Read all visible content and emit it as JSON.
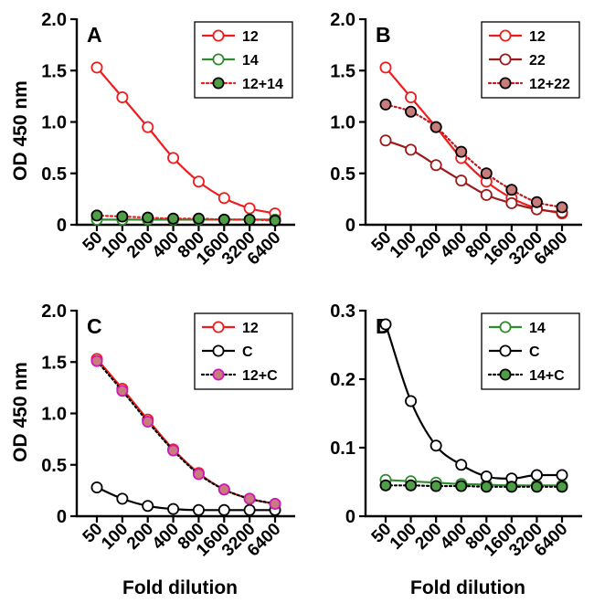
{
  "figure": {
    "y_axis_label": "OD 450 nm",
    "x_axis_label": "Fold dilution"
  },
  "chart_data": [
    {
      "panel": "A",
      "type": "line",
      "x": [
        50,
        100,
        200,
        400,
        800,
        1600,
        3200,
        6400
      ],
      "x_ticks": [
        "50",
        "100",
        "200",
        "400",
        "800",
        "1600",
        "3200",
        "6400"
      ],
      "x_scale": "log",
      "ylim": [
        0,
        2.0
      ],
      "y_ticks": [
        "0",
        "0.5",
        "1.0",
        "1.5",
        "2.0"
      ],
      "ylabel": "OD 450 nm",
      "xlabel": "",
      "legend_position": "top-right",
      "series": [
        {
          "name": "12",
          "color": "#ee1c1c",
          "values": [
            1.53,
            1.24,
            0.95,
            0.65,
            0.42,
            0.26,
            0.16,
            0.11
          ],
          "marker": "open-circle",
          "line": "solid"
        },
        {
          "name": "14",
          "color": "#2e8b2e",
          "values": [
            0.05,
            0.05,
            0.05,
            0.05,
            0.05,
            0.05,
            0.05,
            0.05
          ],
          "marker": "open-circle",
          "line": "solid"
        },
        {
          "name": "12+14",
          "color": "#ee1c1c",
          "marker_fill": "#4d9e44",
          "values": [
            0.09,
            0.08,
            0.07,
            0.06,
            0.06,
            0.05,
            0.05,
            0.04
          ],
          "marker": "filled-circle",
          "line": "dotted"
        }
      ]
    },
    {
      "panel": "B",
      "type": "line",
      "x": [
        50,
        100,
        200,
        400,
        800,
        1600,
        3200,
        6400
      ],
      "x_ticks": [
        "50",
        "100",
        "200",
        "400",
        "800",
        "1600",
        "3200",
        "6400"
      ],
      "x_scale": "log",
      "ylim": [
        0,
        2.0
      ],
      "y_ticks": [
        "0",
        "0.5",
        "1.0",
        "1.5",
        "2.0"
      ],
      "ylabel": "",
      "xlabel": "",
      "legend_position": "top-right",
      "series": [
        {
          "name": "12",
          "color": "#ee1c1c",
          "values": [
            1.53,
            1.24,
            0.95,
            0.65,
            0.42,
            0.26,
            0.16,
            0.11
          ],
          "marker": "open-circle",
          "line": "solid"
        },
        {
          "name": "22",
          "color": "#9b1a1a",
          "values": [
            0.82,
            0.73,
            0.58,
            0.43,
            0.29,
            0.21,
            0.15,
            0.12
          ],
          "marker": "open-circle",
          "line": "solid"
        },
        {
          "name": "12+22",
          "color": "#c2181e",
          "marker_fill": "#c97c7c",
          "values": [
            1.17,
            1.1,
            0.95,
            0.71,
            0.5,
            0.34,
            0.22,
            0.17
          ],
          "marker": "filled-circle",
          "line": "dotted"
        }
      ]
    },
    {
      "panel": "C",
      "type": "line",
      "x": [
        50,
        100,
        200,
        400,
        800,
        1600,
        3200,
        6400
      ],
      "x_ticks": [
        "50",
        "100",
        "200",
        "400",
        "800",
        "1600",
        "3200",
        "6400"
      ],
      "x_scale": "log",
      "ylim": [
        0,
        2.0
      ],
      "y_ticks": [
        "0",
        "0.5",
        "1.0",
        "1.5",
        "2.0"
      ],
      "ylabel": "OD 450 nm",
      "xlabel": "Fold dilution",
      "legend_position": "top-right",
      "series": [
        {
          "name": "12",
          "color": "#ee1c1c",
          "values": [
            1.53,
            1.24,
            0.94,
            0.65,
            0.42,
            0.26,
            0.17,
            0.12
          ],
          "marker": "open-circle",
          "line": "solid"
        },
        {
          "name": "C",
          "color": "#000000",
          "values": [
            0.28,
            0.17,
            0.1,
            0.07,
            0.06,
            0.06,
            0.06,
            0.06
          ],
          "marker": "open-circle",
          "line": "solid"
        },
        {
          "name": "12+C",
          "color": "#000000",
          "marker_fill": "#c97c7c",
          "marker_edge": "#cc1ab8",
          "values": [
            1.51,
            1.22,
            0.92,
            0.64,
            0.41,
            0.26,
            0.17,
            0.12
          ],
          "marker": "filled-circle",
          "line": "dotted"
        }
      ]
    },
    {
      "panel": "D",
      "type": "line",
      "x": [
        50,
        100,
        200,
        400,
        800,
        1600,
        3200,
        6400
      ],
      "x_ticks": [
        "50",
        "100",
        "200",
        "400",
        "800",
        "1600",
        "3200",
        "6400"
      ],
      "x_scale": "log",
      "ylim": [
        0,
        0.3
      ],
      "y_ticks": [
        "0",
        "0.1",
        "0.2",
        "0.3"
      ],
      "ylabel": "",
      "xlabel": "Fold dilution",
      "legend_position": "top-right",
      "series": [
        {
          "name": "14",
          "color": "#2e8b2e",
          "values": [
            0.053,
            0.051,
            0.049,
            0.047,
            0.046,
            0.045,
            0.045,
            0.045
          ],
          "marker": "open-circle",
          "line": "solid"
        },
        {
          "name": "C",
          "color": "#000000",
          "values": [
            0.28,
            0.168,
            0.103,
            0.075,
            0.058,
            0.055,
            0.06,
            0.06
          ],
          "marker": "open-circle",
          "line": "solid"
        },
        {
          "name": "14+C",
          "color": "#000000",
          "marker_fill": "#4d9e44",
          "values": [
            0.045,
            0.045,
            0.044,
            0.044,
            0.043,
            0.043,
            0.043,
            0.043
          ],
          "marker": "filled-circle",
          "line": "dotted"
        }
      ]
    }
  ]
}
